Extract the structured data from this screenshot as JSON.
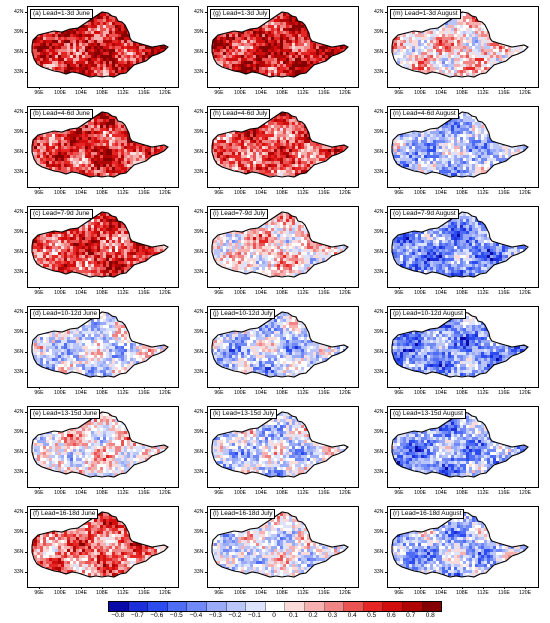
{
  "columns": [
    "June",
    "July",
    "August"
  ],
  "panels": [
    {
      "label": "(a) Lead=1-3d June",
      "bias": 0.55
    },
    {
      "label": "(g) Lead=1-3d July",
      "bias": 0.55
    },
    {
      "label": "(m) Lead=1-3d August",
      "bias": 0.1
    },
    {
      "label": "(b) Lead=4-6d June",
      "bias": 0.5
    },
    {
      "label": "(h) Lead=4-6d July",
      "bias": 0.4
    },
    {
      "label": "(n) Lead=4-6d August",
      "bias": -0.2
    },
    {
      "label": "(c) Lead=7-9d June",
      "bias": 0.45
    },
    {
      "label": "(i) Lead=7-9d July",
      "bias": 0.1
    },
    {
      "label": "(o) Lead=7-9d August",
      "bias": -0.35
    },
    {
      "label": "(d) Lead=10-12d June",
      "bias": -0.1
    },
    {
      "label": "(j) Lead=10-12d July",
      "bias": -0.15
    },
    {
      "label": "(p) Lead=10-12d August",
      "bias": -0.35
    },
    {
      "label": "(e) Lead=13-15d June",
      "bias": 0.05
    },
    {
      "label": "(k) Lead=13-15d July",
      "bias": -0.1
    },
    {
      "label": "(q) Lead=13-15d August",
      "bias": -0.3
    },
    {
      "label": "(f) Lead=16-18d June",
      "bias": 0.35
    },
    {
      "label": "(l) Lead=16-18d July",
      "bias": -0.05
    },
    {
      "label": "(r) Lead=16-18d August",
      "bias": -0.2
    }
  ],
  "map": {
    "lon_ticks": [
      "96E",
      "100E",
      "104E",
      "108E",
      "112E",
      "116E",
      "120E"
    ],
    "lat_ticks": [
      "42N",
      "39N",
      "36N",
      "33N"
    ]
  },
  "colorbar": {
    "labels": [
      "−0.8",
      "−0.7",
      "−0.6",
      "−0.5",
      "−0.4",
      "−0.3",
      "−0.2",
      "−0.1",
      "0",
      "0.1",
      "0.2",
      "0.3",
      "0.4",
      "0.5",
      "0.6",
      "0.7",
      "0.8"
    ],
    "colors": [
      "#0a0aa8",
      "#1c2fd8",
      "#2d4cf0",
      "#4f6cf5",
      "#7189f6",
      "#98aaf8",
      "#bac6fa",
      "#dde3fc",
      "#ffffff",
      "#fbdada",
      "#f6b0b0",
      "#f08585",
      "#eb5252",
      "#e62525",
      "#d20d0d",
      "#b00505",
      "#850000"
    ]
  }
}
